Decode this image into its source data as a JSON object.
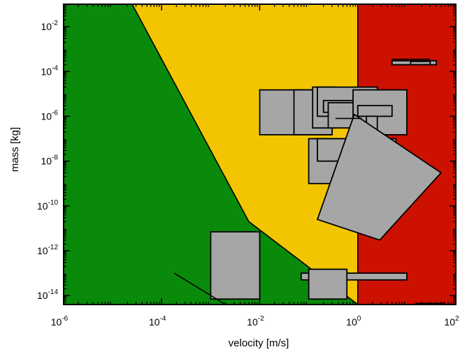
{
  "chart_data": {
    "type": "area",
    "title": "",
    "xlabel": "velocity [m/s]",
    "ylabel": "mass [kg]",
    "x_scale": "log",
    "y_scale": "log",
    "xlim": [
      1e-06,
      100
    ],
    "ylim": [
      4e-15,
      0.1
    ],
    "x_ticks": [
      {
        "value": 1e-06,
        "base": "10",
        "exp": "-6"
      },
      {
        "value": 0.0001,
        "base": "10",
        "exp": "-4"
      },
      {
        "value": 0.01,
        "base": "10",
        "exp": "-2"
      },
      {
        "value": 1,
        "base": "10",
        "exp": "0"
      },
      {
        "value": 100,
        "base": "10",
        "exp": "2"
      }
    ],
    "y_ticks": [
      {
        "value": 1e-14,
        "base": "10",
        "exp": "-14"
      },
      {
        "value": 1e-12,
        "base": "10",
        "exp": "-12"
      },
      {
        "value": 1e-10,
        "base": "10",
        "exp": "-10"
      },
      {
        "value": 1e-08,
        "base": "10",
        "exp": "-8"
      },
      {
        "value": 1e-06,
        "base": "10",
        "exp": "-6"
      },
      {
        "value": 0.0001,
        "base": "10",
        "exp": "-4"
      },
      {
        "value": 0.01,
        "base": "10",
        "exp": "-2"
      }
    ],
    "regions": [
      {
        "name": "green",
        "color": "#0a8a0a",
        "points": [
          [
            1e-06,
            4e-15
          ],
          [
            1e-06,
            0.1
          ],
          [
            2.5e-05,
            0.1
          ],
          [
            0.006,
            2e-11
          ],
          [
            1,
            4e-15
          ]
        ]
      },
      {
        "name": "yellow",
        "color": "#f2c500",
        "points": [
          [
            2.5e-05,
            0.1
          ],
          [
            1,
            0.1
          ],
          [
            1,
            4e-15
          ],
          [
            0.006,
            2e-11
          ]
        ]
      },
      {
        "name": "red",
        "color": "#cc1100",
        "points": [
          [
            1,
            4e-15
          ],
          [
            1,
            0.1
          ],
          [
            100,
            0.1
          ],
          [
            100,
            4e-15
          ]
        ]
      }
    ],
    "boundary_lines": [
      {
        "points": [
          [
            2.5e-05,
            0.1
          ],
          [
            0.006,
            2e-11
          ],
          [
            1,
            4e-15
          ]
        ]
      },
      {
        "points": [
          [
            1,
            4e-15
          ],
          [
            1,
            0.1
          ]
        ]
      }
    ],
    "boxes": [
      {
        "x": [
          0.01,
          0.3
        ],
        "y": [
          1.5e-07,
          1.5e-05
        ]
      },
      {
        "x": [
          0.05,
          0.3
        ],
        "y": [
          1.5e-07,
          1.5e-05
        ]
      },
      {
        "x": [
          0.12,
          0.35
        ],
        "y": [
          3e-07,
          2e-05
        ]
      },
      {
        "x": [
          0.15,
          2.5
        ],
        "y": [
          1e-06,
          2e-05
        ]
      },
      {
        "x": [
          0.2,
          1.5
        ],
        "y": [
          1.5e-06,
          5e-06
        ]
      },
      {
        "x": [
          0.25,
          1.2
        ],
        "y": [
          3e-07,
          4e-06
        ]
      },
      {
        "x": [
          0.8,
          10
        ],
        "y": [
          1.5e-07,
          1.5e-05
        ]
      },
      {
        "x": [
          1,
          5
        ],
        "y": [
          1e-06,
          3e-06
        ]
      },
      {
        "x": [
          0.1,
          2.5
        ],
        "y": [
          1e-09,
          1e-07
        ]
      },
      {
        "x": [
          0.15,
          6
        ],
        "y": [
          1e-08,
          1e-07
        ]
      },
      {
        "x": [
          1.5,
          2.5
        ],
        "y": [
          2e-08,
          1e-06
        ]
      },
      {
        "x": [
          8,
          10
        ],
        "y": [
          1e-10,
          2e-08
        ]
      },
      {
        "x": [
          0.001,
          0.01
        ],
        "y": [
          7e-15,
          7e-12
        ]
      },
      {
        "x": [
          0.07,
          10
        ],
        "y": [
          5e-14,
          1e-13
        ]
      },
      {
        "x": [
          0.1,
          0.6
        ],
        "y": [
          7e-15,
          1.5e-13
        ]
      },
      {
        "x": [
          5,
          40
        ],
        "y": [
          0.0002,
          0.0003
        ]
      },
      {
        "x": [
          12,
          30
        ],
        "y": [
          0.0002,
          0.00028
        ]
      }
    ],
    "polygons": [
      {
        "points": [
          [
            0.85,
            1.2e-06
          ],
          [
            50,
            3e-09
          ],
          [
            2.8,
            3e-12
          ],
          [
            0.15,
            2.5e-11
          ]
        ]
      }
    ],
    "lines": [
      {
        "points": [
          [
            0.00018,
            1e-13
          ],
          [
            0.002,
            4e-15
          ]
        ]
      },
      {
        "points": [
          [
            5,
            0.00035
          ],
          [
            30,
            0.00035
          ]
        ]
      },
      {
        "points": [
          [
            0.35,
            8e-07
          ],
          [
            1.2,
            8e-07
          ]
        ]
      },
      {
        "points": [
          [
            0.12,
            1e-07
          ],
          [
            0.25,
            1e-07
          ]
        ]
      },
      {
        "points": [
          [
            15,
            4.5e-15
          ],
          [
            60,
            4.5e-15
          ]
        ]
      }
    ],
    "colors": {
      "box_fill": "#a6a6a6",
      "box_stroke": "#000000",
      "axis": "#000000"
    }
  }
}
